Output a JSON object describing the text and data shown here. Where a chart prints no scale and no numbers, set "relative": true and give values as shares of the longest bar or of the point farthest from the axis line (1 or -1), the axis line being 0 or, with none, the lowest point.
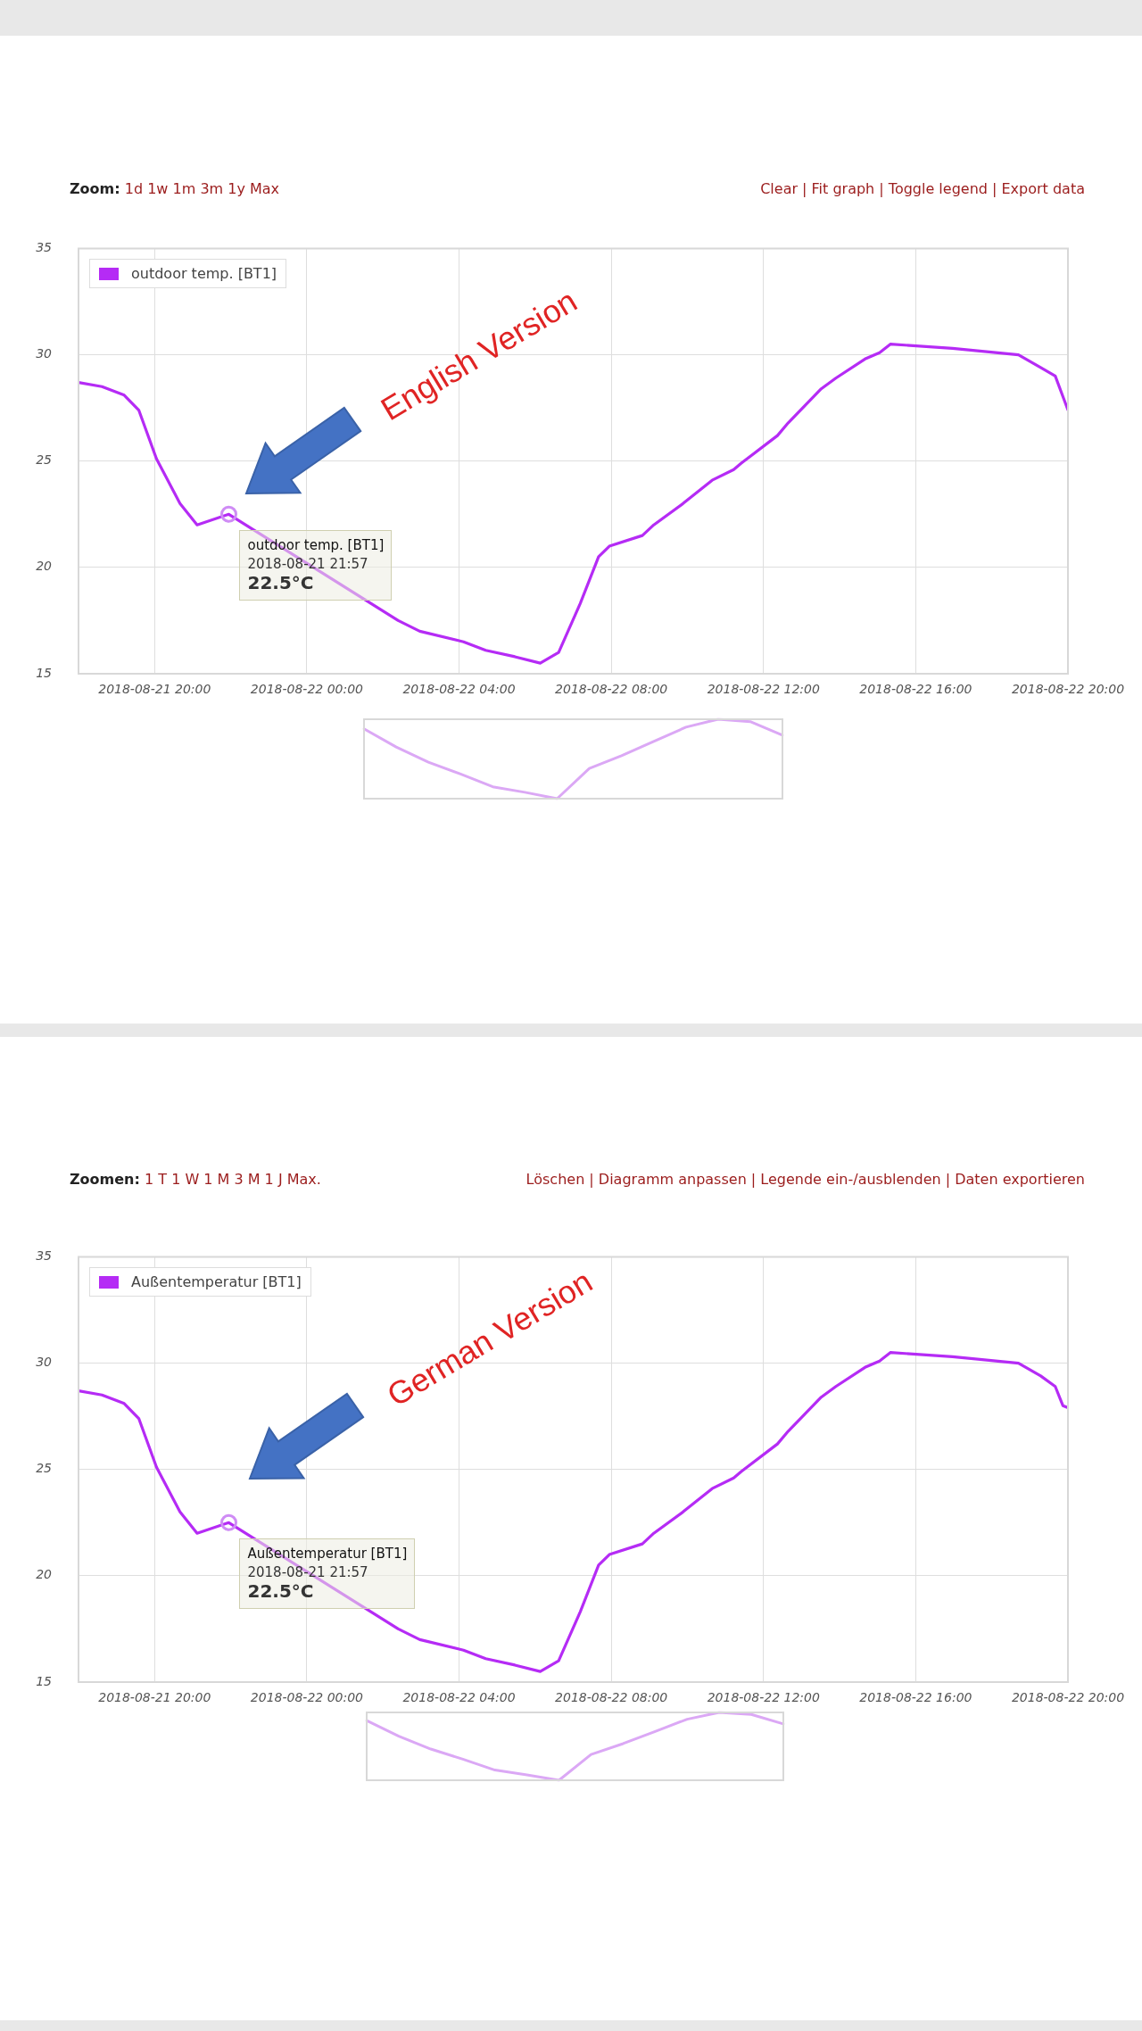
{
  "chart_data": [
    {
      "type": "line",
      "x": [
        "2018-08-21T18:00",
        "2018-08-21T18:37",
        "2018-08-21T19:12",
        "2018-08-21T19:35",
        "2018-08-21T20:03",
        "2018-08-21T20:40",
        "2018-08-21T21:07",
        "2018-08-21T21:57",
        "2018-08-22T02:24",
        "2018-08-22T02:58",
        "2018-08-22T04:07",
        "2018-08-22T04:42",
        "2018-08-22T05:28",
        "2018-08-22T06:08",
        "2018-08-22T06:37",
        "2018-08-22T07:11",
        "2018-08-22T07:40",
        "2018-08-22T07:57",
        "2018-08-22T08:49",
        "2018-08-22T09:07",
        "2018-08-22T09:53",
        "2018-08-22T10:39",
        "2018-08-22T11:13",
        "2018-08-22T11:25",
        "2018-08-22T12:22",
        "2018-08-22T12:39",
        "2018-08-22T13:31",
        "2018-08-22T13:54",
        "2018-08-22T14:40",
        "2018-08-22T15:03",
        "2018-08-22T15:20",
        "2018-08-22T16:58",
        "2018-08-22T18:42",
        "2018-08-22T19:17",
        "2018-08-22T19:40",
        "2018-08-22T20:00"
      ],
      "series": [
        {
          "name": "outdoor temp. [BT1]",
          "color": "#b52bf5",
          "values": [
            28.7,
            28.5,
            28.1,
            27.4,
            25.1,
            23.0,
            22.0,
            22.5,
            17.5,
            17.0,
            16.5,
            16.1,
            15.8,
            15.5,
            16.0,
            18.3,
            20.5,
            21.0,
            21.5,
            22.0,
            23.0,
            24.1,
            24.6,
            24.9,
            26.2,
            26.8,
            28.4,
            28.9,
            29.8,
            30.1,
            30.5,
            30.3,
            30.0,
            29.4,
            29.0,
            27.4
          ]
        }
      ],
      "xlim": [
        "2018-08-21T18:00",
        "2018-08-22T20:00"
      ],
      "xticks": [
        {
          "value": "2018-08-21T20:00",
          "label": "2018-08-21 20:00"
        },
        {
          "value": "2018-08-22T00:00",
          "label": "2018-08-22 00:00"
        },
        {
          "value": "2018-08-22T04:00",
          "label": "2018-08-22 04:00"
        },
        {
          "value": "2018-08-22T08:00",
          "label": "2018-08-22 08:00"
        },
        {
          "value": "2018-08-22T12:00",
          "label": "2018-08-22 12:00"
        },
        {
          "value": "2018-08-22T16:00",
          "label": "2018-08-22 16:00"
        },
        {
          "value": "2018-08-22T20:00",
          "label": "2018-08-22 20:00"
        }
      ],
      "ylim": [
        15,
        35
      ],
      "yticks": [
        15,
        20,
        25,
        30,
        35
      ],
      "grid": true,
      "legend": "top left",
      "annotations": [
        "Zoom: 1d 1w 1m 3m 1y Max",
        "Clear | Fit graph | Toggle legend | Export data",
        "English Version",
        {
          "text": "outdoor temp. [BT1]\n2018-08-21 21:57\n22.5°C",
          "x": "2018-08-21T21:57",
          "y": 22.5
        }
      ]
    },
    {
      "type": "line",
      "relative": true,
      "categories": [
        null,
        null,
        null,
        null,
        null,
        null,
        null,
        null,
        null,
        null,
        null,
        null,
        null,
        null
      ],
      "series": [
        {
          "color": "#dba8f5",
          "values": [
            0.88,
            0.65,
            0.46,
            0.31,
            0.15,
            0.08,
            0,
            0.38,
            0.54,
            0.72,
            0.9,
            1,
            0.97,
            0.8
          ]
        }
      ]
    },
    {
      "type": "line",
      "x": [
        "2018-08-21T18:00",
        "2018-08-21T18:37",
        "2018-08-21T19:12",
        "2018-08-21T19:35",
        "2018-08-21T20:03",
        "2018-08-21T20:40",
        "2018-08-21T21:07",
        "2018-08-21T21:57",
        "2018-08-22T02:24",
        "2018-08-22T02:58",
        "2018-08-22T04:07",
        "2018-08-22T04:42",
        "2018-08-22T05:28",
        "2018-08-22T06:08",
        "2018-08-22T06:37",
        "2018-08-22T07:11",
        "2018-08-22T07:40",
        "2018-08-22T07:57",
        "2018-08-22T08:49",
        "2018-08-22T09:07",
        "2018-08-22T09:53",
        "2018-08-22T10:39",
        "2018-08-22T11:13",
        "2018-08-22T11:25",
        "2018-08-22T12:22",
        "2018-08-22T12:39",
        "2018-08-22T13:31",
        "2018-08-22T13:54",
        "2018-08-22T14:40",
        "2018-08-22T15:03",
        "2018-08-22T15:20",
        "2018-08-22T16:58",
        "2018-08-22T18:42",
        "2018-08-22T19:17",
        "2018-08-22T19:40",
        "2018-08-22T19:52",
        "2018-08-22T20:00"
      ],
      "series": [
        {
          "name": "Außentemperatur [BT1]",
          "color": "#b52bf5",
          "values": [
            28.7,
            28.5,
            28.1,
            27.4,
            25.1,
            23.0,
            22.0,
            22.5,
            17.5,
            17.0,
            16.5,
            16.1,
            15.8,
            15.5,
            16.0,
            18.3,
            20.5,
            21.0,
            21.5,
            22.0,
            23.0,
            24.1,
            24.6,
            24.9,
            26.2,
            26.8,
            28.4,
            28.9,
            29.8,
            30.1,
            30.5,
            30.3,
            30.0,
            29.4,
            28.9,
            28.0,
            27.9
          ]
        }
      ],
      "xlim": [
        "2018-08-21T18:00",
        "2018-08-22T20:00"
      ],
      "xticks": [
        {
          "value": "2018-08-21T20:00",
          "label": "2018-08-21 20:00"
        },
        {
          "value": "2018-08-22T00:00",
          "label": "2018-08-22 00:00"
        },
        {
          "value": "2018-08-22T04:00",
          "label": "2018-08-22 04:00"
        },
        {
          "value": "2018-08-22T08:00",
          "label": "2018-08-22 08:00"
        },
        {
          "value": "2018-08-22T12:00",
          "label": "2018-08-22 12:00"
        },
        {
          "value": "2018-08-22T16:00",
          "label": "2018-08-22 16:00"
        },
        {
          "value": "2018-08-22T20:00",
          "label": "2018-08-22 20:00"
        }
      ],
      "ylim": [
        15,
        35
      ],
      "yticks": [
        15,
        20,
        25,
        30,
        35
      ],
      "grid": true,
      "legend": "top left",
      "annotations": [
        "Zoomen: 1 T 1 W 1 M 3 M 1 J Max.",
        "Löschen | Diagramm anpassen | Legende ein-/ausblenden | Daten exportieren",
        "German Version",
        {
          "text": "Außentemperatur [BT1]\n2018-08-21 21:57\n22.5°C",
          "x": "2018-08-21T21:57",
          "y": 22.5
        }
      ]
    },
    {
      "type": "line",
      "relative": true,
      "categories": [
        null,
        null,
        null,
        null,
        null,
        null,
        null,
        null,
        null,
        null,
        null,
        null,
        null,
        null
      ],
      "series": [
        {
          "color": "#dba8f5",
          "values": [
            0.88,
            0.65,
            0.46,
            0.31,
            0.15,
            0.08,
            0,
            0.38,
            0.54,
            0.72,
            0.9,
            1,
            0.97,
            0.83
          ]
        }
      ]
    }
  ]
}
